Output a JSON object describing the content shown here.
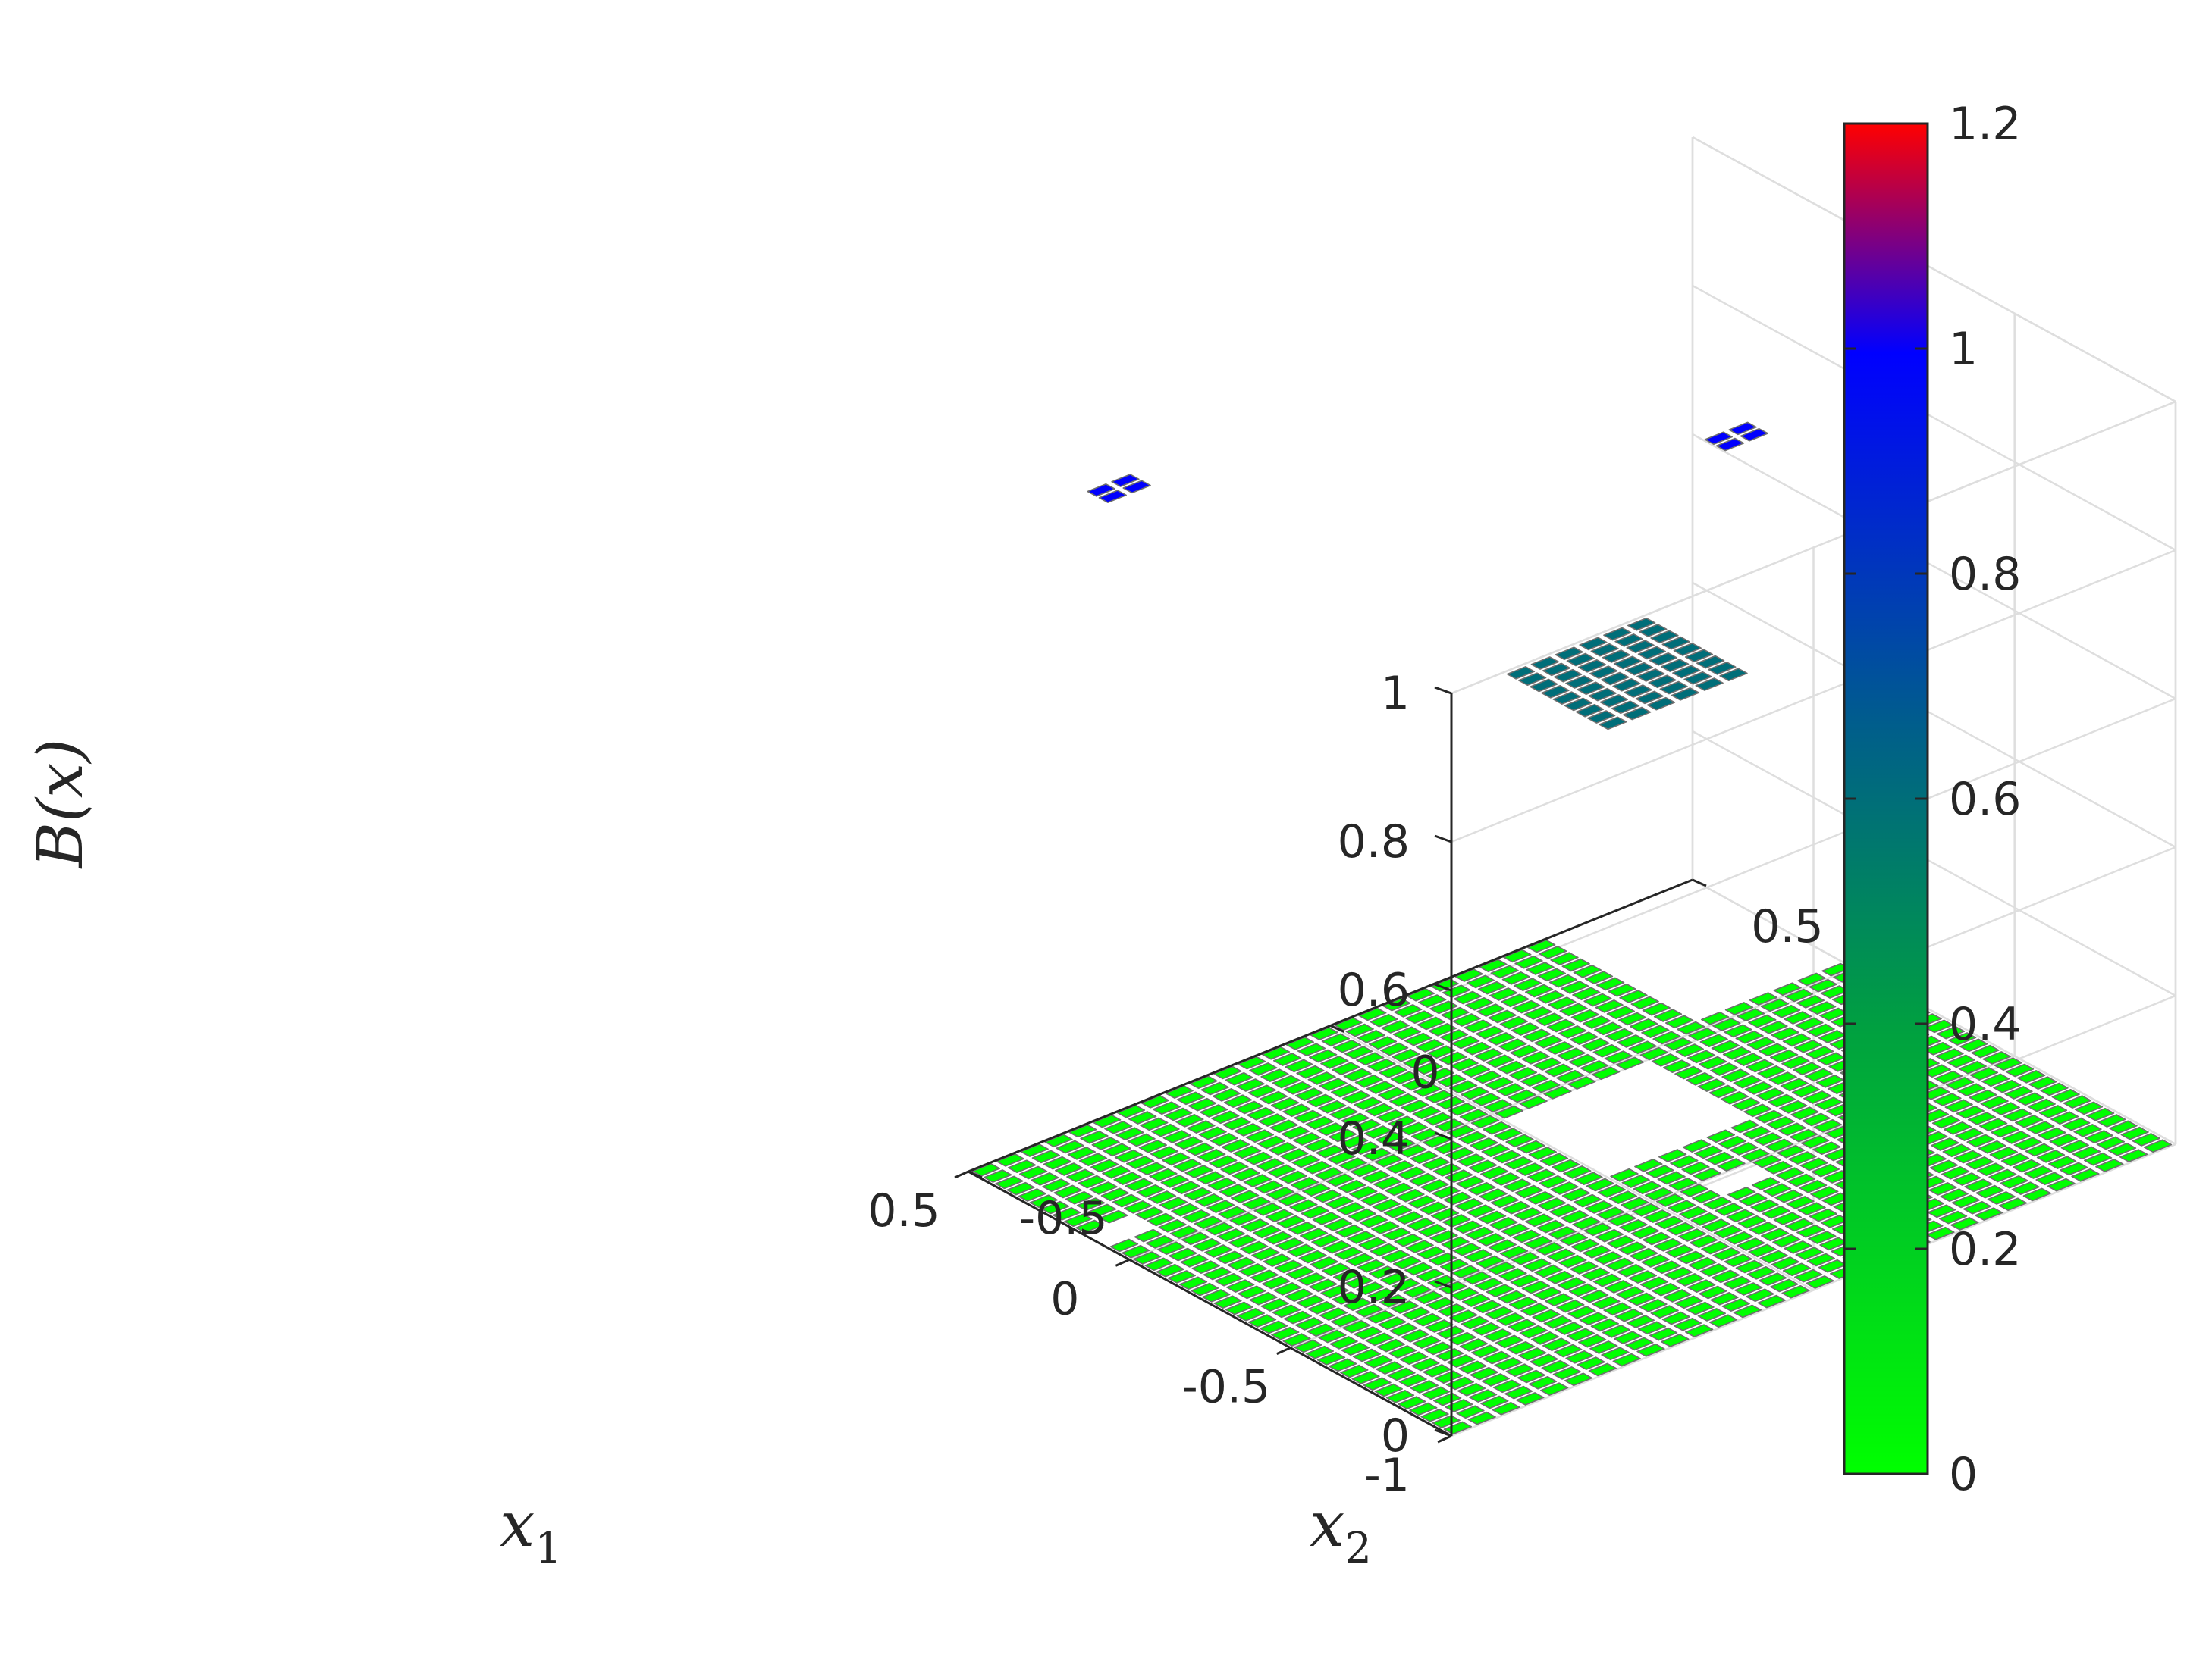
{
  "chart_data": {
    "type": "surface",
    "title": "",
    "xlabel": "x",
    "xlabel_sub": "1",
    "ylabel": "x",
    "ylabel_sub": "2",
    "zlabel": "B(x)",
    "xlim": [
      -1,
      0.5
    ],
    "ylim": [
      -0.5,
      0.5
    ],
    "zlim": [
      0,
      1
    ],
    "x_ticks": [
      -1,
      -0.5,
      0,
      0.5
    ],
    "x_tick_labels": [
      "-1",
      "-0.5",
      "0",
      "0.5"
    ],
    "y_ticks": [
      -0.5,
      0,
      0.5
    ],
    "y_tick_labels": [
      "-0.5",
      "0",
      "0.5"
    ],
    "z_ticks": [
      0,
      0.2,
      0.4,
      0.6,
      0.8,
      1
    ],
    "z_tick_labels": [
      "0",
      "0.2",
      "0.4",
      "0.6",
      "0.8",
      "1"
    ],
    "grid": true,
    "colormap": {
      "stops": [
        "#00ff00",
        "#0000ff",
        "#ff0000"
      ],
      "range": [
        0,
        1.2
      ],
      "ticks": [
        0,
        0.2,
        0.4,
        0.6,
        0.8,
        1,
        1.2
      ],
      "tick_labels": [
        "0",
        "0.2",
        "0.4",
        "0.6",
        "0.8",
        "1",
        "1.2"
      ],
      "placement": "right"
    },
    "base_level": {
      "z": 0.0,
      "x_range": [
        -1,
        0.5
      ],
      "y_range": [
        -0.5,
        0.5
      ],
      "description_value": "most of the domain at B(x)=0"
    },
    "raised_regions": [
      {
        "x_range": [
          -0.35,
          -0.05
        ],
        "y_range": [
          0.0,
          0.2
        ],
        "z": 0.6
      },
      {
        "x_range": [
          0.08,
          0.16
        ],
        "y_range": [
          -0.5,
          -0.44
        ],
        "z": 1.0
      },
      {
        "x_range": [
          -0.58,
          -0.5
        ],
        "y_range": [
          0.08,
          0.14
        ],
        "z": 1.0
      }
    ],
    "colors": {
      "grid_edge": "#6f6f6f",
      "low": "#00ff00",
      "mid": "#0000ff",
      "high": "#ff0000"
    }
  }
}
